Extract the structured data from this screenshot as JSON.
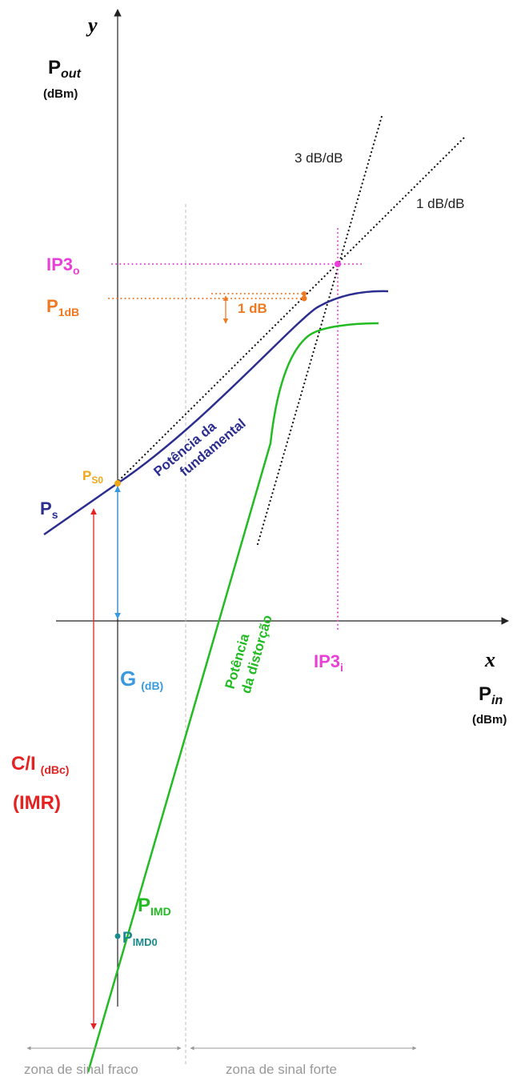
{
  "axes": {
    "y_symbol": "y",
    "x_symbol": "x",
    "y_name_main": "P",
    "y_name_sub": "out",
    "y_unit": "(dBm)",
    "x_name_main": "P",
    "x_name_sub": "in",
    "x_unit": "(dBm)"
  },
  "labels": {
    "slope3": "3 dB/dB",
    "slope1": "1 dB/dB",
    "ip3o_main": "IP3",
    "ip3o_sub": "o",
    "p1db_main": "P",
    "p1db_sub": "1dB",
    "one_db": "1 dB",
    "ps0_main": "P",
    "ps0_sub": "S0",
    "ps_main": "P",
    "ps_sub": "s",
    "fund_line1": "Potência da",
    "fund_line2": "fundamental",
    "dist_line1": "Potência",
    "dist_line2": "da distorção",
    "gain_main": "G",
    "gain_sub": "(dB)",
    "ci_main": "C/I",
    "ci_sub": "(dBc)",
    "imr": "(IMR)",
    "pimd_main": "P",
    "pimd_sub": "IMD",
    "pimd0_main": "P",
    "pimd0_sub": "IMD0",
    "ip3i_main": "IP3",
    "ip3i_sub": "i",
    "zone_weak": "zona de sinal fraco",
    "zone_strong": "zona de sinal forte"
  },
  "colors": {
    "fundamental": "#2b2e8f",
    "distortion": "#22bb22",
    "ip3": "#e83fd6",
    "p1db": "#f07820",
    "ps0": "#f0a818",
    "gain": "#3a9ae0",
    "ci": "#e52222",
    "pimd0": "#1a8a8a",
    "zone": "#999999"
  }
}
